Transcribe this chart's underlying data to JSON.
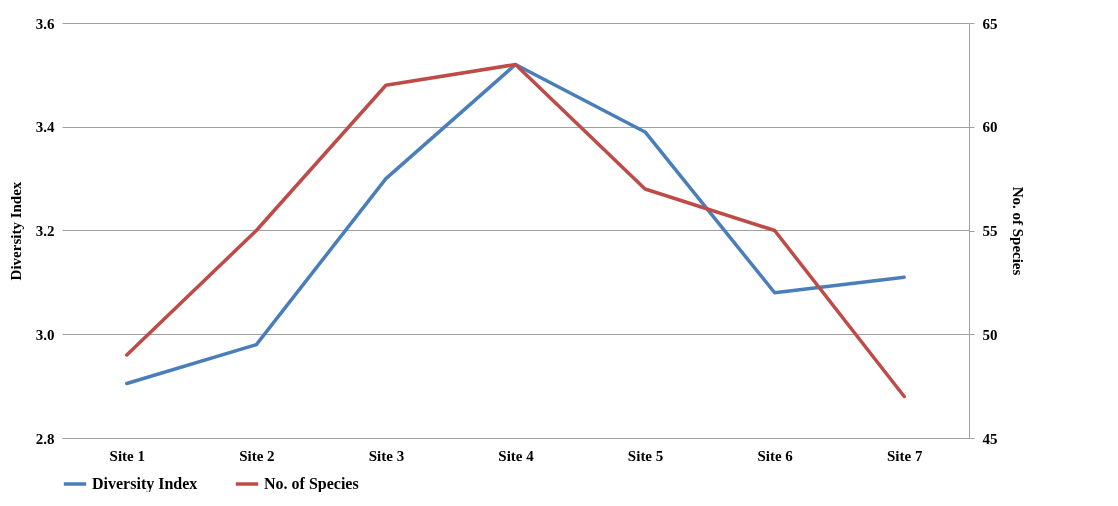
{
  "chart_data": {
    "type": "line",
    "ylabel": "Diversity Index",
    "y2label": "No. of Species",
    "categories": [
      "Site 1",
      "Site 2",
      "Site 3",
      "Site 4",
      "Site 5",
      "Site 6",
      "Site 7"
    ],
    "series": [
      {
        "name": "Diversity Index",
        "color": "#4a7ebb",
        "values": [
          2.905,
          2.98,
          3.3,
          3.52,
          3.39,
          3.08,
          3.11
        ]
      },
      {
        "name": "No. of Species",
        "color": "#be4b48",
        "axis": "y2",
        "values": [
          49,
          55,
          62,
          63,
          57,
          55,
          47
        ]
      }
    ],
    "ylim": [
      2.8,
      3.6
    ],
    "yticks": [
      {
        "value": 2.8,
        "label": "2.8"
      },
      {
        "value": 3.0,
        "label": "3.0"
      },
      {
        "value": 3.2,
        "label": "3.2"
      },
      {
        "value": 3.4,
        "label": "3.4"
      },
      {
        "value": 3.6,
        "label": "3.6"
      }
    ],
    "y2lim": [
      45,
      65
    ],
    "y2ticks": [
      45,
      50,
      55,
      60,
      65
    ],
    "grid": "y",
    "legend": "bottom",
    "marker": "none",
    "line_style": "solid"
  }
}
